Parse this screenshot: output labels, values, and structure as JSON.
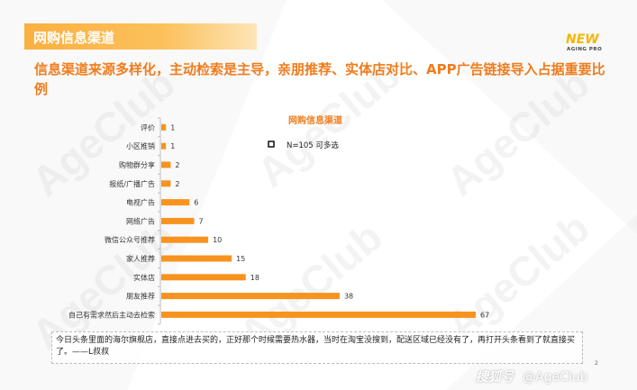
{
  "header": {
    "section_title": "网购信息渠道",
    "logo_text": "NEW",
    "logo_sub": "AGING PRO",
    "headline": "信息渠道来源多样化，主动检索是主导，亲朋推荐、实体店对比、APP广告链接导入占据重要比例"
  },
  "watermark": "AgeClub",
  "chart_data": {
    "type": "bar",
    "orientation": "horizontal",
    "title": "网购信息渠道",
    "legend_text": "N=105  可多选",
    "categories": [
      "评价",
      "小区推销",
      "购物群分享",
      "报纸/广播广告",
      "电视广告",
      "网络广告",
      "微信公众号推荐",
      "家人推荐",
      "实体店",
      "朋友推荐",
      "自己有需求然后主动去检索"
    ],
    "values": [
      1,
      1,
      2,
      2,
      6,
      7,
      10,
      15,
      18,
      38,
      67
    ],
    "xlim": [
      0,
      67
    ],
    "grid": false,
    "bar_color": "#f7931e"
  },
  "note": {
    "text": "今日头条里面的海尔旗舰店，直接点进去买的，正好那个时候需要热水器，当时在淘宝没搜到，配送区域已经没有了，再打开头条看到了就直接买了。——L叔叔"
  },
  "page_number": "2",
  "footer": {
    "brand_icon_text": "搜狐号",
    "handle": "@AgeClub"
  },
  "colors": {
    "accent_orange": "#f07c1c",
    "title_bar": "#fbb040",
    "bar": "#f7931e"
  }
}
